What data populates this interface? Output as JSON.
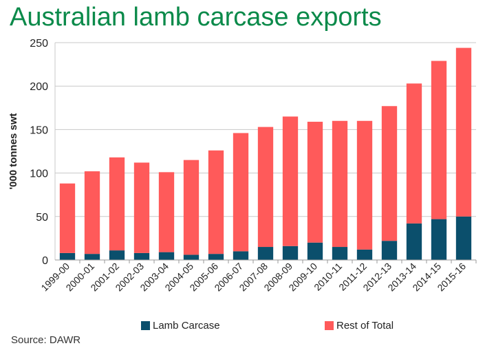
{
  "chart_data": {
    "type": "bar",
    "stacked": true,
    "title": "Australian lamb carcase exports",
    "ylabel": "'000 tonnes swt",
    "xlabel": "",
    "ylim": [
      0,
      250
    ],
    "yticks": [
      0,
      50,
      100,
      150,
      200,
      250
    ],
    "grid": true,
    "legend_position": "bottom",
    "categories": [
      "1999-00",
      "2000-01",
      "2001-02",
      "2002-03",
      "2003-04",
      "2004-05",
      "2005-06",
      "2006-07",
      "2007-08",
      "2008-09",
      "2009-10",
      "2010-11",
      "2011-12",
      "2012-13",
      "2013-14",
      "2014-15",
      "2015-16"
    ],
    "series": [
      {
        "name": "Lamb Carcase",
        "color": "#0b4f6c",
        "values": [
          8,
          7,
          11,
          8,
          9,
          6,
          7,
          10,
          15,
          16,
          20,
          15,
          12,
          22,
          42,
          47,
          50
        ]
      },
      {
        "name": "Rest of Total",
        "color": "#ff5a5a",
        "values": [
          80,
          95,
          107,
          104,
          92,
          109,
          119,
          136,
          138,
          149,
          139,
          145,
          148,
          155,
          161,
          182,
          194
        ]
      }
    ],
    "source": "Source: DAWR"
  }
}
